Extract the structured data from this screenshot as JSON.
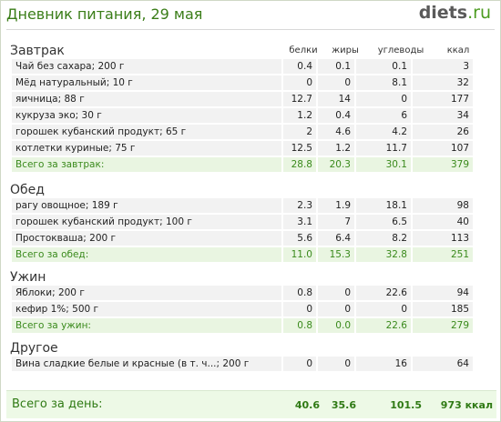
{
  "header": {
    "title": "Дневник питания, 29 мая",
    "logo_main": "diets",
    "logo_tld": ".ru"
  },
  "columns": [
    "белки",
    "жиры",
    "углеводы",
    "ккал"
  ],
  "sections": [
    {
      "title": "Завтрак",
      "rows": [
        [
          "Чай без сахара; 200 г",
          "0.4",
          "0.1",
          "0.1",
          "3"
        ],
        [
          "Мёд натуральный; 10 г",
          "0",
          "0",
          "8.1",
          "32"
        ],
        [
          "яичница; 88 г",
          "12.7",
          "14",
          "0",
          "177"
        ],
        [
          "кукруза эко; 30 г",
          "1.2",
          "0.4",
          "6",
          "34"
        ],
        [
          "горошек кубанский продукт; 65 г",
          "2",
          "4.6",
          "4.2",
          "26"
        ],
        [
          "котлетки куриные; 75 г",
          "12.5",
          "1.2",
          "11.7",
          "107"
        ]
      ],
      "total": [
        "Всего за завтрак:",
        "28.8",
        "20.3",
        "30.1",
        "379"
      ]
    },
    {
      "title": "Обед",
      "rows": [
        [
          "рагу овощное; 189 г",
          "2.3",
          "1.9",
          "18.1",
          "98"
        ],
        [
          "горошек кубанский продукт; 100 г",
          "3.1",
          "7",
          "6.5",
          "40"
        ],
        [
          "Простокваша; 200 г",
          "5.6",
          "6.4",
          "8.2",
          "113"
        ]
      ],
      "total": [
        "Всего за обед:",
        "11.0",
        "15.3",
        "32.8",
        "251"
      ]
    },
    {
      "title": "Ужин",
      "rows": [
        [
          "Яблоки; 200 г",
          "0.8",
          "0",
          "22.6",
          "94"
        ],
        [
          "кефир 1%; 500 г",
          "0",
          "0",
          "0",
          "185"
        ]
      ],
      "total": [
        "Всего за ужин:",
        "0.8",
        "0.0",
        "22.6",
        "279"
      ]
    },
    {
      "title": "Другое",
      "rows": [
        [
          "Вина сладкие белые и красные (в т. ч...; 200 г",
          "0",
          "0",
          "16",
          "64"
        ]
      ],
      "total": null
    }
  ],
  "day_total": {
    "label": "Всего за день:",
    "values": [
      "40.6",
      "35.6",
      "101.5",
      "973 ккал"
    ]
  },
  "colors": {
    "title_green": "#3a7d18",
    "total_green": "#3a8a1c",
    "total_bg": "#e9f5e1",
    "row_bg": "#f2f2f2"
  }
}
